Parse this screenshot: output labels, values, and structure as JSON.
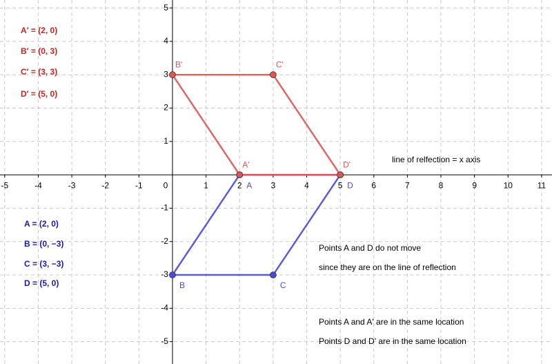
{
  "chart_data": {
    "type": "polygon",
    "xlim": [
      -5.14,
      11.31
    ],
    "ylim": [
      -5.67,
      5.24
    ],
    "xticks": [
      -5,
      -4,
      -3,
      -2,
      -1,
      0,
      1,
      2,
      3,
      4,
      5,
      6,
      7,
      8,
      9,
      10,
      11
    ],
    "yticks": [
      -5,
      -4,
      -3,
      -2,
      -1,
      1,
      2,
      3,
      4,
      5
    ],
    "grid": true,
    "series": [
      {
        "color": "#4a4ad6",
        "labels": [
          "A",
          "B",
          "C",
          "D"
        ],
        "x": [
          2,
          0,
          3,
          5
        ],
        "values": [
          0,
          -3,
          -3,
          0
        ]
      },
      {
        "color": "#dd5555",
        "labels": [
          "A'",
          "B'",
          "C'",
          "D'"
        ],
        "x": [
          2,
          0,
          3,
          5
        ],
        "values": [
          0,
          3,
          3,
          0
        ]
      }
    ],
    "annotations": [
      {
        "text": "A′ = (2, 0)",
        "color": "#cc2222"
      },
      {
        "text": "B′ = (0, 3)",
        "color": "#cc2222"
      },
      {
        "text": "C′ = (3, 3)",
        "color": "#cc2222"
      },
      {
        "text": "D′ = (5, 0)",
        "color": "#cc2222"
      },
      {
        "text": "A = (2, 0)",
        "color": "#1a1aa8"
      },
      {
        "text": "B = (0, −3)",
        "color": "#1a1aa8"
      },
      {
        "text": "C = (3, −3)",
        "color": "#1a1aa8"
      },
      {
        "text": "D = (5, 0)",
        "color": "#1a1aa8"
      },
      {
        "text": "line of relfection = x axis",
        "color": "#000000"
      },
      {
        "text": "Points A and D do not move",
        "color": "#000000"
      },
      {
        "text": "since they are on the line of reflection",
        "color": "#000000"
      },
      {
        "text": "Points A and A' are in the same location",
        "color": "#000000"
      },
      {
        "text": "Points D and D' are in the same location",
        "color": "#000000"
      }
    ]
  }
}
